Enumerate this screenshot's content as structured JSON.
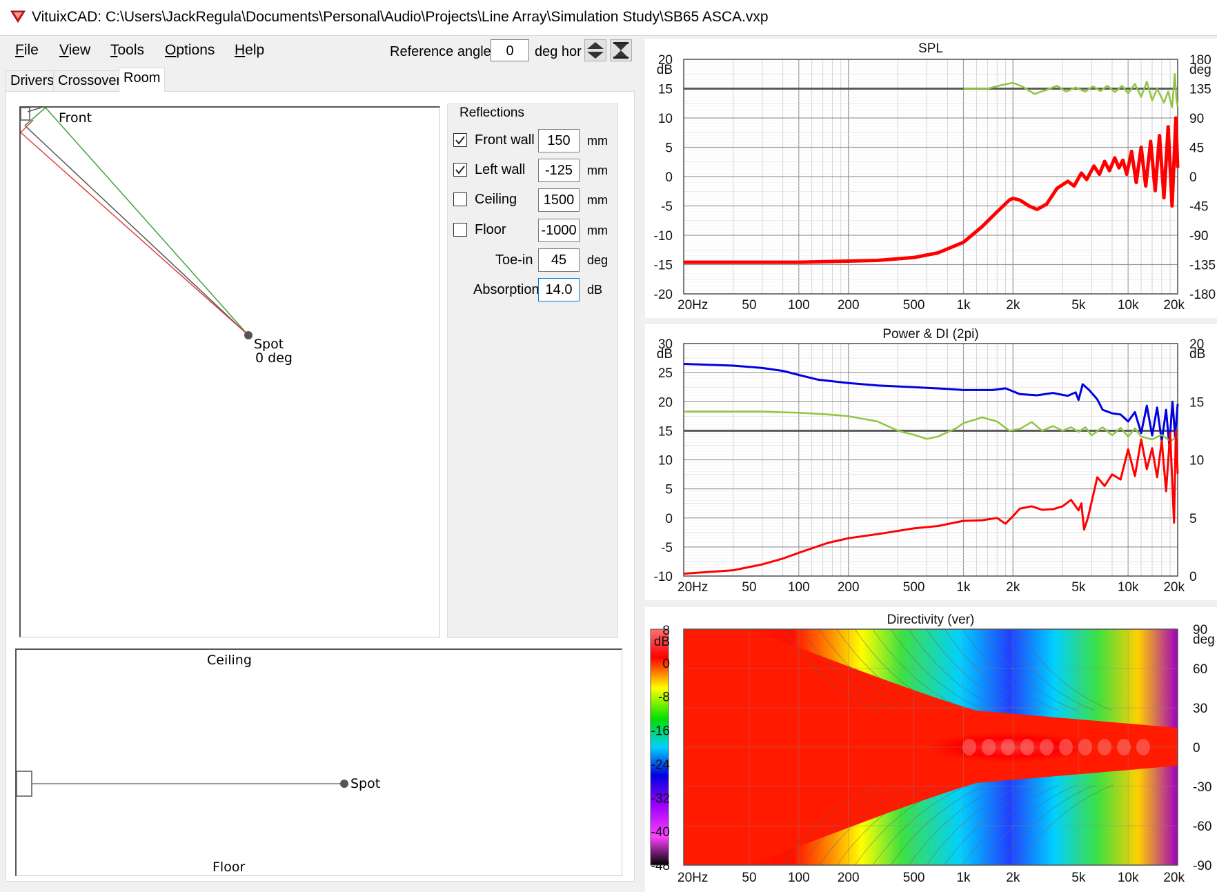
{
  "window": {
    "title": "VituixCAD: C:\\Users\\JackRegula\\Documents\\Personal\\Audio\\Projects\\Line Array\\Simulation Study\\SB65 ASCA.vxp"
  },
  "menu": [
    {
      "label": "File",
      "u": "F",
      "rest": "ile"
    },
    {
      "label": "View",
      "u": "V",
      "rest": "iew"
    },
    {
      "label": "Tools",
      "u": "T",
      "rest": "ools"
    },
    {
      "label": "Options",
      "u": "O",
      "rest": "ptions"
    },
    {
      "label": "Help",
      "u": "H",
      "rest": "elp"
    }
  ],
  "reference": {
    "label": "Reference angle",
    "value": "0",
    "unit": "deg hor"
  },
  "tabs": [
    "Drivers",
    "Crossover",
    "Room"
  ],
  "active_tab": "Room",
  "plan_view": {
    "front_label": "Front",
    "spot_label": "Spot",
    "spot_angle": "0 deg"
  },
  "elevation_view": {
    "ceiling_label": "Ceiling",
    "floor_label": "Floor",
    "spot_label": "Spot"
  },
  "reflections": {
    "title": "Reflections",
    "rows": [
      {
        "label": "Front wall",
        "checked": true,
        "value": "150",
        "unit": "mm"
      },
      {
        "label": "Left wall",
        "checked": true,
        "value": "-125",
        "unit": "mm"
      },
      {
        "label": "Ceiling",
        "checked": false,
        "value": "1500",
        "unit": "mm"
      },
      {
        "label": "Floor",
        "checked": false,
        "value": "-1000",
        "unit": "mm"
      }
    ],
    "toe_in": {
      "label": "Toe-in",
      "value": "45",
      "unit": "deg"
    },
    "absorption": {
      "label": "Absorption",
      "value": "14.0",
      "unit": "dB"
    }
  },
  "colors": {
    "red": "#ff0000",
    "blue": "#0000e0",
    "green": "#8dc63f",
    "grid": "#c8c8c8",
    "refline": "#5a5a5a"
  },
  "x_ticks": [
    "20Hz",
    "50",
    "100",
    "200",
    "500",
    "1k",
    "2k",
    "5k",
    "10k",
    "20k"
  ],
  "chart_data": [
    {
      "type": "line",
      "title": "SPL",
      "x_scale": "log",
      "xlim": [
        20,
        20000
      ],
      "ylabel": "dB",
      "ylim": [
        -20,
        20
      ],
      "y_ticks": [
        "20",
        "15",
        "10",
        "5",
        "0",
        "-5",
        "-10",
        "-15",
        "-20"
      ],
      "y2label": "deg",
      "y2lim": [
        -180,
        180
      ],
      "y2_ticks": [
        "180",
        "135",
        "90",
        "45",
        "0",
        "-45",
        "-90",
        "-135",
        "-180"
      ],
      "reference_level": 15,
      "series": [
        {
          "color": "red",
          "width": 5,
          "points": [
            [
              20,
              -14.6
            ],
            [
              100,
              -14.6
            ],
            [
              300,
              -14.3
            ],
            [
              500,
              -13.8
            ],
            [
              700,
              -13.0
            ],
            [
              1000,
              -11.2
            ],
            [
              1300,
              -8.5
            ],
            [
              1600,
              -6.0
            ],
            [
              1900,
              -4.0
            ],
            [
              2000,
              -3.7
            ],
            [
              2200,
              -4.0
            ],
            [
              2500,
              -5.0
            ],
            [
              2800,
              -5.6
            ],
            [
              3200,
              -4.7
            ],
            [
              3700,
              -2.0
            ],
            [
              4300,
              -0.8
            ],
            [
              4700,
              -1.6
            ],
            [
              5200,
              0.6
            ],
            [
              5600,
              -0.5
            ],
            [
              6200,
              1.8
            ],
            [
              6700,
              0.4
            ],
            [
              7200,
              2.6
            ],
            [
              7700,
              1.0
            ],
            [
              8300,
              3.2
            ],
            [
              8800,
              1.5
            ],
            [
              9300,
              2.8
            ],
            [
              9800,
              0.4
            ],
            [
              10500,
              4.3
            ],
            [
              11200,
              -1.0
            ],
            [
              12000,
              5.0
            ],
            [
              12800,
              -1.6
            ],
            [
              13700,
              6.0
            ],
            [
              14600,
              -2.4
            ],
            [
              15500,
              7.0
            ],
            [
              16500,
              -3.6
            ],
            [
              17500,
              8.5
            ],
            [
              18500,
              -5.0
            ],
            [
              19500,
              10.0
            ],
            [
              20000,
              1.5
            ]
          ]
        },
        {
          "color": "green",
          "width": 2.5,
          "points": [
            [
              1000,
              15.0
            ],
            [
              1400,
              15.0
            ],
            [
              1700,
              15.6
            ],
            [
              2000,
              16.0
            ],
            [
              2300,
              15.3
            ],
            [
              2700,
              14.1
            ],
            [
              3200,
              14.8
            ],
            [
              3700,
              15.5
            ],
            [
              4200,
              14.5
            ],
            [
              4800,
              15.2
            ],
            [
              5500,
              14.5
            ],
            [
              6100,
              15.4
            ],
            [
              6800,
              14.6
            ],
            [
              7500,
              15.5
            ],
            [
              8300,
              14.4
            ],
            [
              9200,
              15.5
            ],
            [
              10000,
              14.2
            ],
            [
              11000,
              15.8
            ],
            [
              12000,
              13.6
            ],
            [
              13000,
              16.2
            ],
            [
              14000,
              13.0
            ],
            [
              15000,
              15.0
            ],
            [
              16500,
              12.6
            ],
            [
              17500,
              14.5
            ],
            [
              18500,
              11.8
            ],
            [
              19200,
              17.5
            ],
            [
              19700,
              13.0
            ],
            [
              20000,
              12.0
            ]
          ]
        }
      ]
    },
    {
      "type": "line",
      "title": "Power & DI (2pi)",
      "x_scale": "log",
      "xlim": [
        20,
        20000
      ],
      "ylabel": "dB",
      "ylim": [
        -10,
        30
      ],
      "y_ticks": [
        "30",
        "25",
        "20",
        "15",
        "10",
        "5",
        "0",
        "-5",
        "-10"
      ],
      "y2label": "dB",
      "y2lim": [
        0,
        20
      ],
      "y2_ticks": [
        "20",
        "15",
        "10",
        "5",
        "0"
      ],
      "reference_level": 15,
      "series": [
        {
          "color": "blue",
          "width": 3,
          "points": [
            [
              20,
              26.5
            ],
            [
              40,
              26.2
            ],
            [
              60,
              25.8
            ],
            [
              80,
              25.3
            ],
            [
              100,
              24.6
            ],
            [
              130,
              23.8
            ],
            [
              200,
              23.2
            ],
            [
              300,
              22.8
            ],
            [
              500,
              22.5
            ],
            [
              800,
              22.2
            ],
            [
              1000,
              22.0
            ],
            [
              1500,
              22.0
            ],
            [
              1800,
              22.3
            ],
            [
              2200,
              21.3
            ],
            [
              2800,
              21.1
            ],
            [
              3500,
              21.5
            ],
            [
              4300,
              21.0
            ],
            [
              4800,
              21.6
            ],
            [
              5000,
              20.3
            ],
            [
              5300,
              23.0
            ],
            [
              5800,
              22.0
            ],
            [
              6500,
              20.4
            ],
            [
              7000,
              18.6
            ],
            [
              8000,
              18.0
            ],
            [
              9000,
              17.8
            ],
            [
              10000,
              16.6
            ],
            [
              11000,
              18.2
            ],
            [
              12000,
              14.6
            ],
            [
              13000,
              19.3
            ],
            [
              14000,
              14.2
            ],
            [
              15000,
              19.0
            ],
            [
              16000,
              13.2
            ],
            [
              17000,
              18.6
            ],
            [
              17800,
              12.4
            ],
            [
              18600,
              20.0
            ],
            [
              19300,
              14.0
            ],
            [
              20000,
              19.6
            ]
          ]
        },
        {
          "color": "green",
          "width": 2.5,
          "points": [
            [
              20,
              18.3
            ],
            [
              60,
              18.3
            ],
            [
              100,
              18.1
            ],
            [
              150,
              17.8
            ],
            [
              200,
              17.5
            ],
            [
              300,
              16.6
            ],
            [
              400,
              15.0
            ],
            [
              500,
              14.3
            ],
            [
              600,
              13.6
            ],
            [
              700,
              14.0
            ],
            [
              900,
              15.4
            ],
            [
              1000,
              16.3
            ],
            [
              1300,
              17.3
            ],
            [
              1600,
              16.6
            ],
            [
              1900,
              15.0
            ],
            [
              2200,
              15.3
            ],
            [
              2600,
              16.5
            ],
            [
              3000,
              15.0
            ],
            [
              3500,
              15.8
            ],
            [
              4000,
              15.0
            ],
            [
              4500,
              15.6
            ],
            [
              5000,
              14.8
            ],
            [
              5500,
              15.6
            ],
            [
              6000,
              14.2
            ],
            [
              7000,
              15.6
            ],
            [
              8000,
              14.2
            ],
            [
              9000,
              15.5
            ],
            [
              10000,
              14.0
            ],
            [
              11000,
              15.4
            ],
            [
              12000,
              14.0
            ],
            [
              14000,
              13.5
            ],
            [
              16000,
              14.3
            ],
            [
              18000,
              13.2
            ],
            [
              20000,
              14.0
            ]
          ]
        },
        {
          "color": "red",
          "width": 3,
          "points": [
            [
              20,
              -9.6
            ],
            [
              40,
              -9.0
            ],
            [
              60,
              -8.0
            ],
            [
              80,
              -7.0
            ],
            [
              100,
              -6.0
            ],
            [
              150,
              -4.3
            ],
            [
              200,
              -3.5
            ],
            [
              300,
              -2.8
            ],
            [
              500,
              -1.8
            ],
            [
              700,
              -1.4
            ],
            [
              1000,
              -0.5
            ],
            [
              1300,
              -0.4
            ],
            [
              1600,
              0.0
            ],
            [
              1800,
              -1.0
            ],
            [
              2000,
              0.3
            ],
            [
              2200,
              1.6
            ],
            [
              2600,
              2.0
            ],
            [
              3000,
              1.4
            ],
            [
              3500,
              1.5
            ],
            [
              4000,
              2.0
            ],
            [
              4500,
              3.1
            ],
            [
              5000,
              1.3
            ],
            [
              5200,
              2.5
            ],
            [
              5400,
              -2.0
            ],
            [
              5700,
              0.0
            ],
            [
              6500,
              7.0
            ],
            [
              7200,
              5.5
            ],
            [
              8000,
              7.5
            ],
            [
              9000,
              6.6
            ],
            [
              10000,
              11.8
            ],
            [
              11000,
              7.2
            ],
            [
              12000,
              13.5
            ],
            [
              13000,
              8.4
            ],
            [
              14000,
              12.0
            ],
            [
              15000,
              7.0
            ],
            [
              16000,
              13.3
            ],
            [
              17000,
              4.6
            ],
            [
              18000,
              14.6
            ],
            [
              19000,
              -0.8
            ],
            [
              19500,
              15.0
            ],
            [
              20000,
              7.6
            ]
          ]
        }
      ]
    },
    {
      "type": "heatmap",
      "title": "Directivity (ver)",
      "x_scale": "log",
      "xlim": [
        20,
        20000
      ],
      "ylabel": "deg",
      "y_ticks": [
        "90",
        "60",
        "30",
        "0",
        "-30",
        "-60",
        "-90"
      ],
      "colorbar_unit": "dB",
      "colorbar_ticks": [
        "8",
        "0",
        "-8",
        "-16",
        "-24",
        "-32",
        "-40",
        "-48"
      ]
    }
  ]
}
